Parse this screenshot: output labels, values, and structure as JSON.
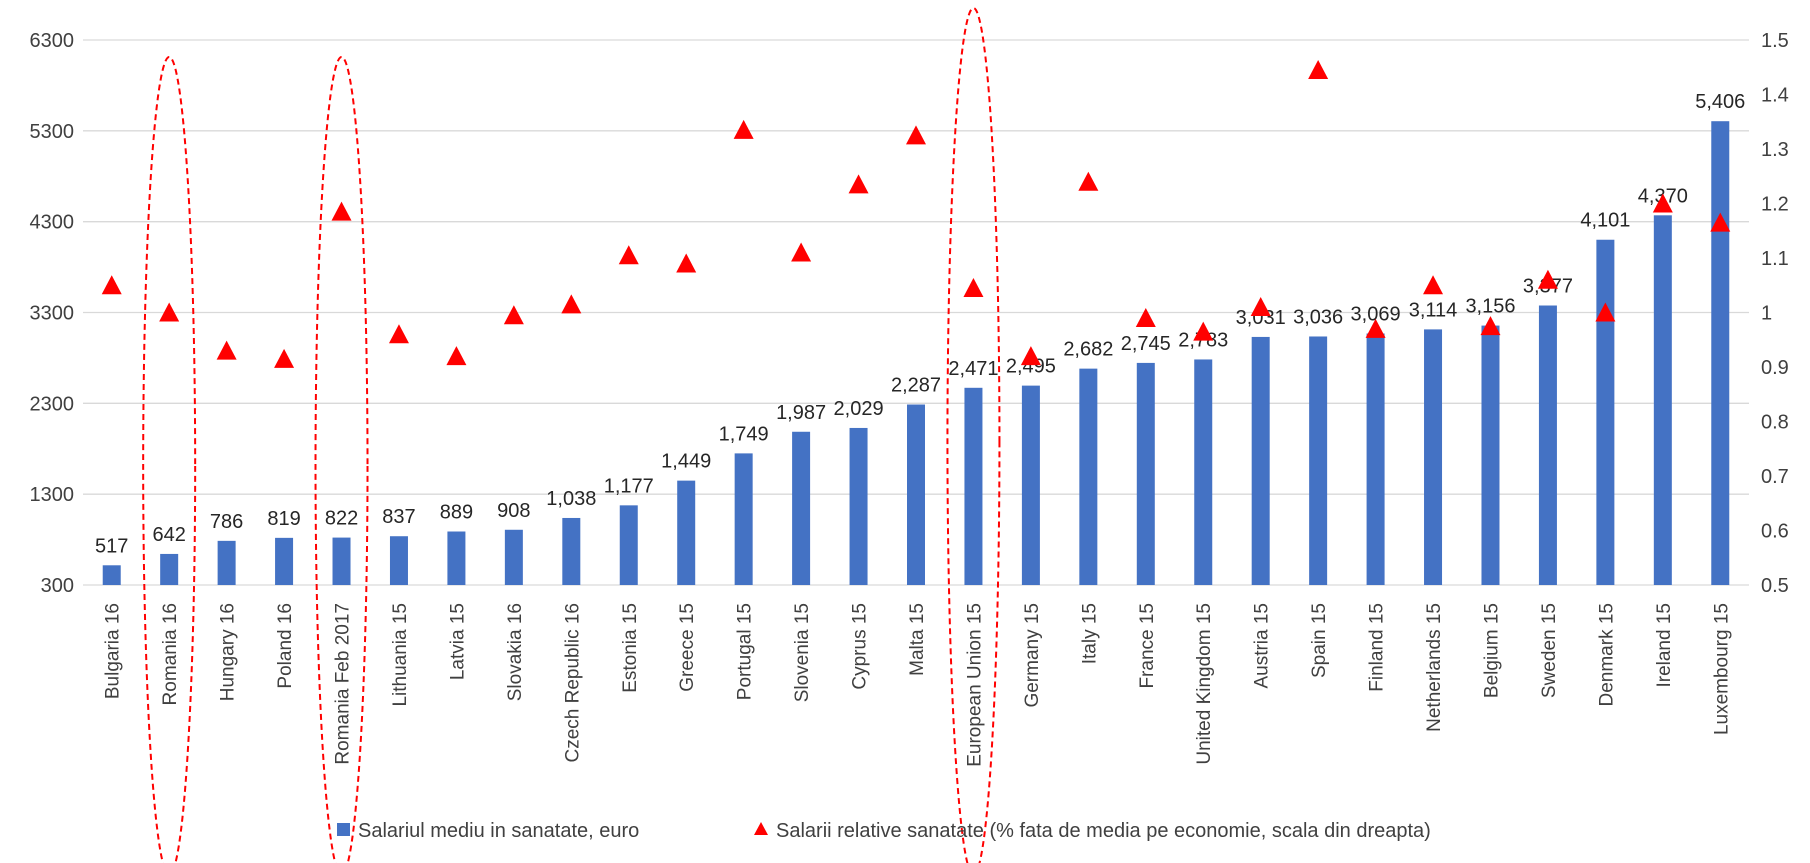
{
  "chart_data": {
    "type": "bar",
    "categories": [
      "Bulgaria 16",
      "Romania 16",
      "Hungary 16",
      "Poland 16",
      "Romania Feb 2017",
      "Lithuania 15",
      "Latvia 15",
      "Slovakia 16",
      "Czech Republic 16",
      "Estonia 15",
      "Greece 15",
      "Portugal 15",
      "Slovenia 15",
      "Cyprus 15",
      "Malta 15",
      "European Union 15",
      "Germany 15",
      "Italy 15",
      "France 15",
      "United Kingdom 15",
      "Austria 15",
      "Spain 15",
      "Finland 15",
      "Netherlands 15",
      "Belgium 15",
      "Sweden 15",
      "Denmark 15",
      "Ireland 15",
      "Luxembourg 15"
    ],
    "series": [
      {
        "name": "Salariul mediu in sanatate, euro",
        "type": "bar",
        "axis": "left",
        "color": "#4472C4",
        "values": [
          517,
          642,
          786,
          819,
          822,
          837,
          889,
          908,
          1038,
          1177,
          1449,
          1749,
          1987,
          2029,
          2287,
          2471,
          2495,
          2682,
          2745,
          2783,
          3031,
          3036,
          3069,
          3114,
          3156,
          3377,
          4101,
          4370,
          5406
        ],
        "labels": [
          "517",
          "642",
          "786",
          "819",
          "822",
          "837",
          "889",
          "908",
          "1,038",
          "1,177",
          "1,449",
          "1,749",
          "1,987",
          "2,029",
          "2,287",
          "2,471",
          "2,495",
          "2,682",
          "2,745",
          "2,783",
          "3,031",
          "3,036",
          "3,069",
          "3,114",
          "3,156",
          "3,377",
          "4,101",
          "4,370",
          "5,406"
        ]
      },
      {
        "name": "Salarii relative sanatate (% fata de media pe economie, scala din dreapta)",
        "type": "scatter",
        "marker": "triangle",
        "axis": "right",
        "color": "#FF0000",
        "values": [
          1.05,
          1.0,
          0.93,
          0.915,
          1.185,
          0.96,
          0.92,
          0.995,
          1.015,
          1.105,
          1.09,
          1.335,
          1.11,
          1.235,
          1.325,
          1.045,
          0.92,
          1.24,
          0.99,
          0.965,
          1.01,
          1.445,
          0.97,
          1.05,
          0.975,
          1.06,
          1.0,
          1.2,
          1.165
        ]
      }
    ],
    "y_left": {
      "ticks": [
        "6300",
        "5300",
        "4300",
        "3300",
        "2300",
        "1300",
        "300"
      ],
      "range": [
        300,
        6300
      ]
    },
    "y_right": {
      "ticks": [
        "1.5",
        "1.4",
        "1.3",
        "1.2",
        "1.1",
        "1",
        "0.9",
        "0.8",
        "0.7",
        "0.6",
        "0.5"
      ],
      "range": [
        0.5,
        1.5
      ]
    },
    "highlighted_categories": [
      "Romania 16",
      "Romania Feb 2017",
      "European Union 15"
    ],
    "highlight_color": "#FF0000",
    "grid": true,
    "legend_position": "bottom"
  }
}
